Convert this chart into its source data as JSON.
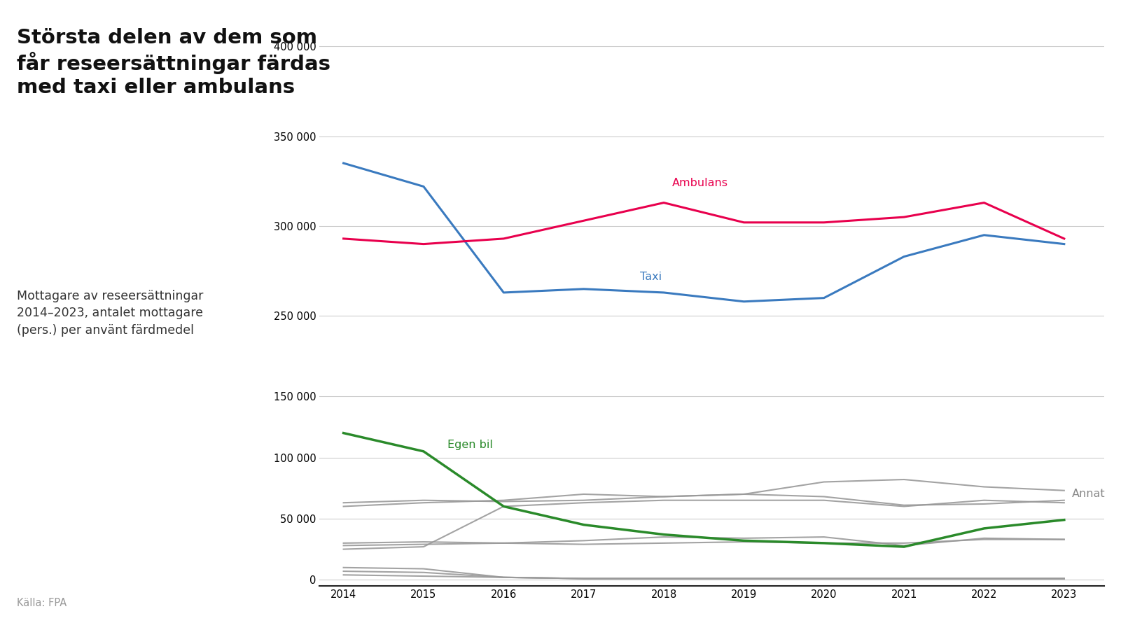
{
  "years": [
    2014,
    2015,
    2016,
    2017,
    2018,
    2019,
    2020,
    2021,
    2022,
    2023
  ],
  "taxi": [
    335000,
    322000,
    263000,
    265000,
    263000,
    258000,
    260000,
    283000,
    295000,
    290000
  ],
  "ambulans": [
    293000,
    290000,
    293000,
    303000,
    313000,
    302000,
    302000,
    305000,
    313000,
    293000
  ],
  "egen_bil": [
    120000,
    105000,
    60000,
    45000,
    37000,
    32000,
    30000,
    27000,
    42000,
    49000
  ],
  "annat_lines": [
    [
      63000,
      65000,
      64000,
      65000,
      68000,
      70000,
      68000,
      61000,
      62000,
      65000
    ],
    [
      28000,
      29000,
      30000,
      32000,
      35000,
      34000,
      35000,
      28000,
      34000,
      33000
    ],
    [
      25000,
      27000,
      60000,
      63000,
      65000,
      65000,
      65000,
      60000,
      65000,
      63000
    ],
    [
      30000,
      31000,
      30000,
      29000,
      30000,
      31000,
      30000,
      30000,
      33000,
      33000
    ],
    [
      10000,
      9000,
      2000,
      1000,
      1000,
      1000,
      1000,
      1000,
      1000,
      1000
    ],
    [
      7000,
      6000,
      2000,
      1000,
      1000,
      1000,
      1000,
      1000,
      1000,
      1000
    ],
    [
      4000,
      3000,
      2000,
      1000,
      1000,
      1000,
      1000,
      1000,
      1000,
      1000
    ],
    [
      60000,
      63000,
      65000,
      70000,
      68000,
      70000,
      80000,
      82000,
      76000,
      73000
    ]
  ],
  "taxi_color": "#3a7abf",
  "ambulans_color": "#e8004d",
  "egen_bil_color": "#2a8a2a",
  "annat_color": "#999999",
  "title_line1": "Största delen av dem som",
  "title_line2": "får reseersättningar färdas",
  "title_line3": "med taxi eller ambulans",
  "subtitle": "Mottagare av reseersättningar\n2014–2023, antalet mottagare\n(pers.) per använt färdmedel",
  "source": "Källa: FPA",
  "background_color": "#ffffff",
  "taxi_label": "Taxi",
  "ambulans_label": "Ambulans",
  "egen_bil_label": "Egen bil",
  "annat_label": "Annat",
  "ylim_upper": [
    240000,
    410000
  ],
  "ylim_lower": [
    -5000,
    165000
  ],
  "yticks_upper": [
    250000,
    300000,
    350000,
    400000
  ],
  "yticks_lower": [
    0,
    50000,
    100000,
    150000
  ]
}
